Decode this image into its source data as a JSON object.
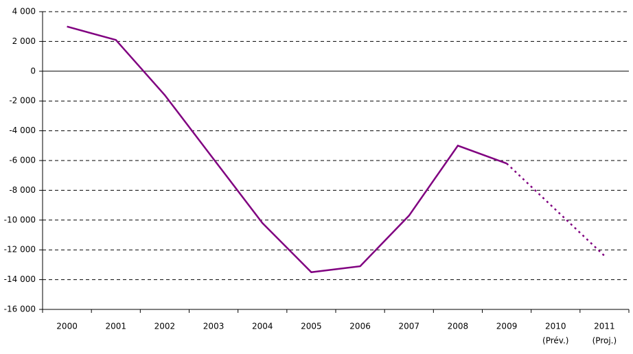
{
  "chart_data": {
    "type": "line",
    "categories": [
      "2000",
      "2001",
      "2002",
      "2003",
      "2004",
      "2005",
      "2006",
      "2007",
      "2008",
      "2009",
      "2010",
      "2011"
    ],
    "category_notes": [
      null,
      null,
      null,
      null,
      null,
      null,
      null,
      null,
      null,
      null,
      "(Prév.)",
      "(Proj.)"
    ],
    "series": [
      {
        "color": "#800080",
        "style": "solid",
        "values": [
          3000,
          2100,
          -1600,
          -5900,
          -10200,
          -13500,
          -13100,
          -9700,
          -5000,
          -6200,
          null,
          null
        ]
      },
      {
        "color": "#800080",
        "style": "dotted",
        "values": [
          null,
          null,
          null,
          null,
          null,
          null,
          null,
          null,
          null,
          -6200,
          -9300,
          -12400
        ]
      }
    ],
    "ylim": [
      -16000,
      4000
    ],
    "yticks": [
      {
        "value": -16000,
        "label": "-16 000"
      },
      {
        "value": -14000,
        "label": "-14 000"
      },
      {
        "value": -12000,
        "label": "-12 000"
      },
      {
        "value": -10000,
        "label": "-10 000"
      },
      {
        "value": -8000,
        "label": "-8 000"
      },
      {
        "value": -6000,
        "label": "-6 000"
      },
      {
        "value": -4000,
        "label": "-4 000"
      },
      {
        "value": -2000,
        "label": "-2 000"
      },
      0,
      {
        "value": 2000,
        "label": "2 000"
      },
      {
        "value": 4000,
        "label": "4 000"
      }
    ],
    "grid": true
  }
}
